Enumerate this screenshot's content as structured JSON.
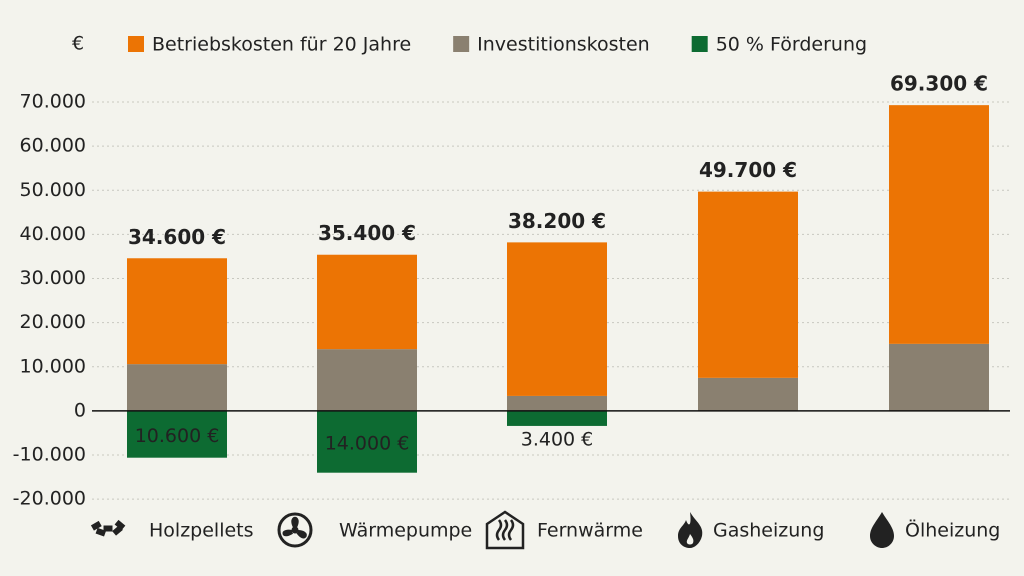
{
  "chart_data": {
    "type": "stacked-bar",
    "unit_label": "€",
    "categories": [
      "Holzpellets",
      "Wärmepumpe",
      "Fernwärme",
      "Gasheizung",
      "Ölheizung"
    ],
    "series": [
      {
        "name": "Betriebskosten für 20 Jahre",
        "color": "#ec7404",
        "values": [
          24000,
          21400,
          34800,
          42200,
          54100
        ]
      },
      {
        "name": "Investitionskosten",
        "color": "#8a8070",
        "values": [
          10600,
          14000,
          3400,
          7500,
          15200
        ]
      },
      {
        "name": "50 % Förderung",
        "color": "#0d6b32",
        "values": [
          -10600,
          -14000,
          -3400,
          null,
          null
        ],
        "value_labels": [
          "10.600 €",
          "14.000 €",
          "3.400 €",
          null,
          null
        ]
      }
    ],
    "totals": {
      "values": [
        34600,
        35400,
        38200,
        49700,
        69300
      ],
      "value_labels": [
        "34.600 €",
        "35.400 €",
        "38.200 €",
        "49.700 €",
        "69.300 €"
      ]
    },
    "ylim": [
      -22000,
      75000
    ],
    "yticks": [
      {
        "value": -20000,
        "label": "-20.000"
      },
      {
        "value": -10000,
        "label": "-10.000"
      },
      0,
      {
        "value": 10000,
        "label": "10.000"
      },
      {
        "value": 20000,
        "label": "20.000"
      },
      {
        "value": 30000,
        "label": "30.000"
      },
      {
        "value": 40000,
        "label": "40.000"
      },
      {
        "value": 50000,
        "label": "50.000"
      },
      {
        "value": 60000,
        "label": "60.000"
      },
      {
        "value": 70000,
        "label": "70.000"
      }
    ],
    "grid": true
  }
}
